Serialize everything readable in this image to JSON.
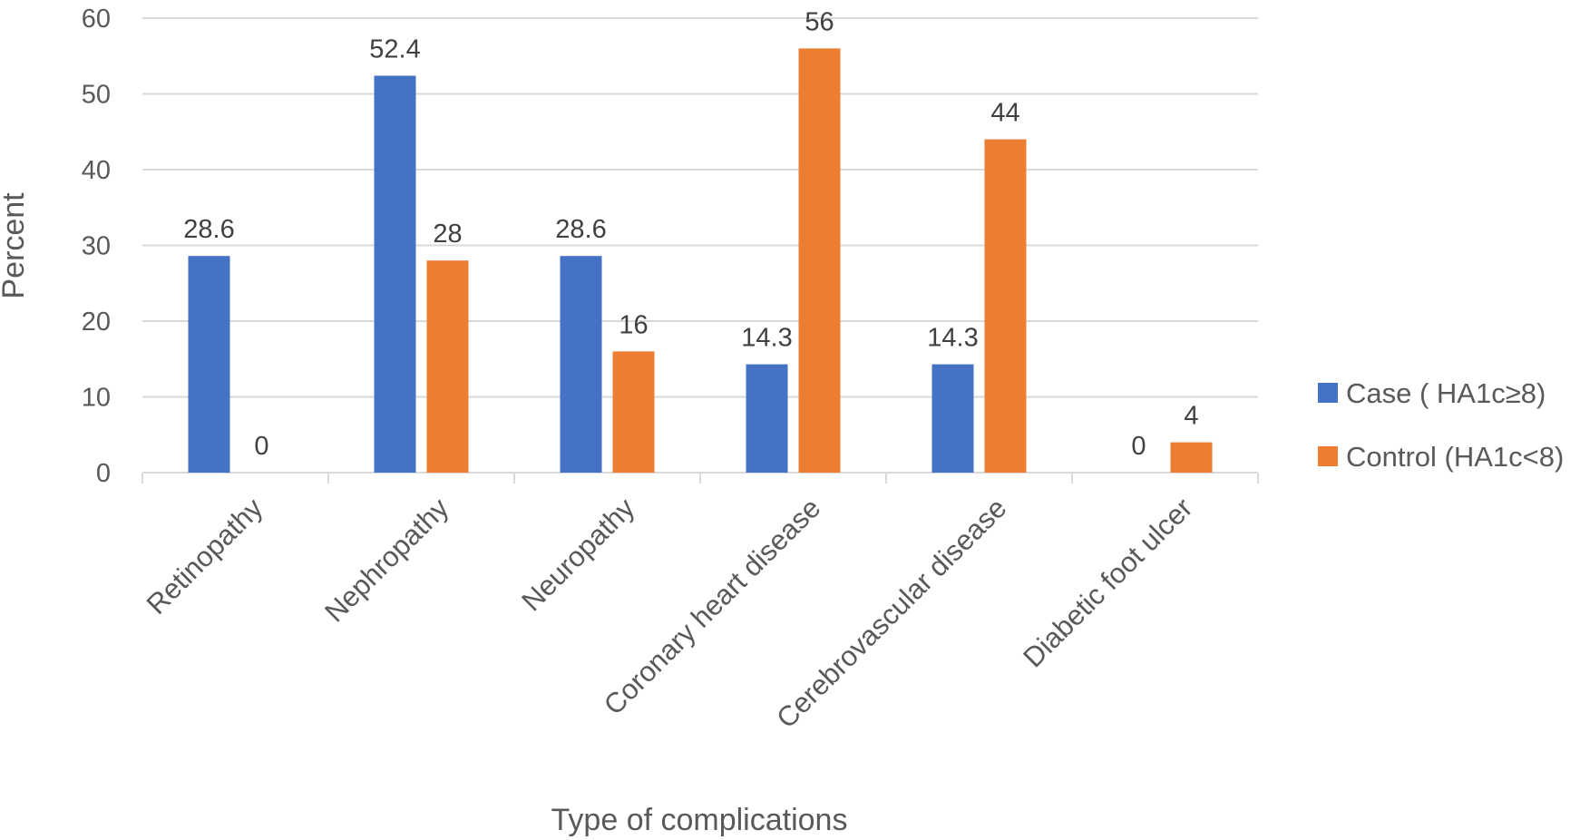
{
  "chart_data": {
    "type": "bar",
    "title": "",
    "xlabel": "Type of complications",
    "ylabel": "Percent",
    "ylim": [
      0,
      60
    ],
    "yticks": [
      0,
      10,
      20,
      30,
      40,
      50,
      60
    ],
    "grid": true,
    "legend_position": "right",
    "categories": [
      "Retinopathy",
      "Nephropathy",
      "Neuropathy",
      "Coronary heart disease",
      "Cerebrovascular disease",
      "Diabetic foot ulcer"
    ],
    "series": [
      {
        "name": "Case ( HA1c≥8)",
        "color": "#4472C4",
        "values": [
          28.6,
          52.4,
          28.6,
          14.3,
          14.3,
          0
        ],
        "labels": [
          "28.6",
          "52.4",
          "28.6",
          "14.3",
          "14.3",
          "0"
        ]
      },
      {
        "name": "Control (HA1c<8)",
        "color": "#ED7D31",
        "values": [
          0,
          28,
          16,
          56,
          44,
          4
        ],
        "labels": [
          "0",
          "28",
          "16",
          "56",
          "44",
          "4"
        ]
      }
    ]
  }
}
